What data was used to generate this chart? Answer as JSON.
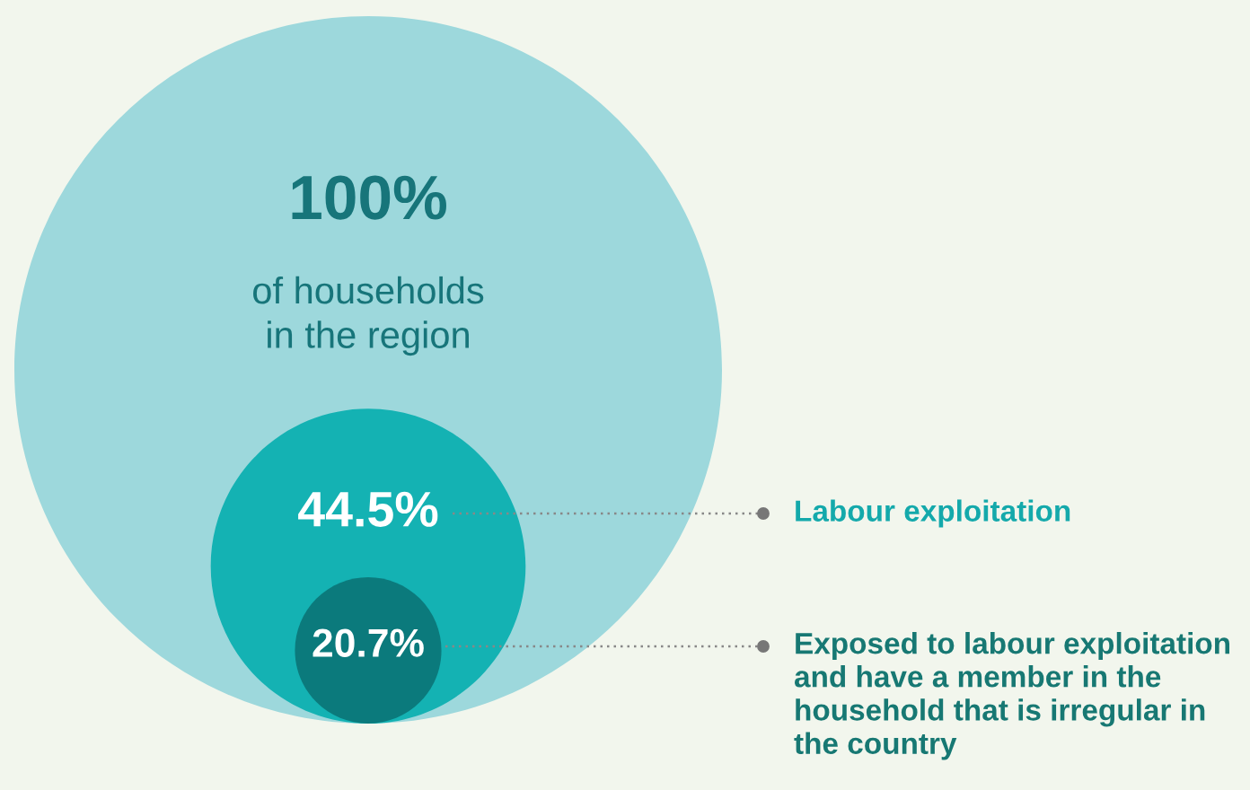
{
  "chart_data": {
    "type": "other",
    "categories": [
      "of households\nin the region",
      "Labour exploitation",
      "Exposed to labour exploitation\nand have a member in the\nhousehold that is irregular in\nthe country"
    ],
    "values": [
      100,
      44.5,
      20.7
    ],
    "value_labels": [
      "100%",
      "44.5%",
      "20.7%"
    ],
    "colors": [
      "#9dd8dc",
      "#14b2b3",
      "#0b7a7c"
    ]
  }
}
